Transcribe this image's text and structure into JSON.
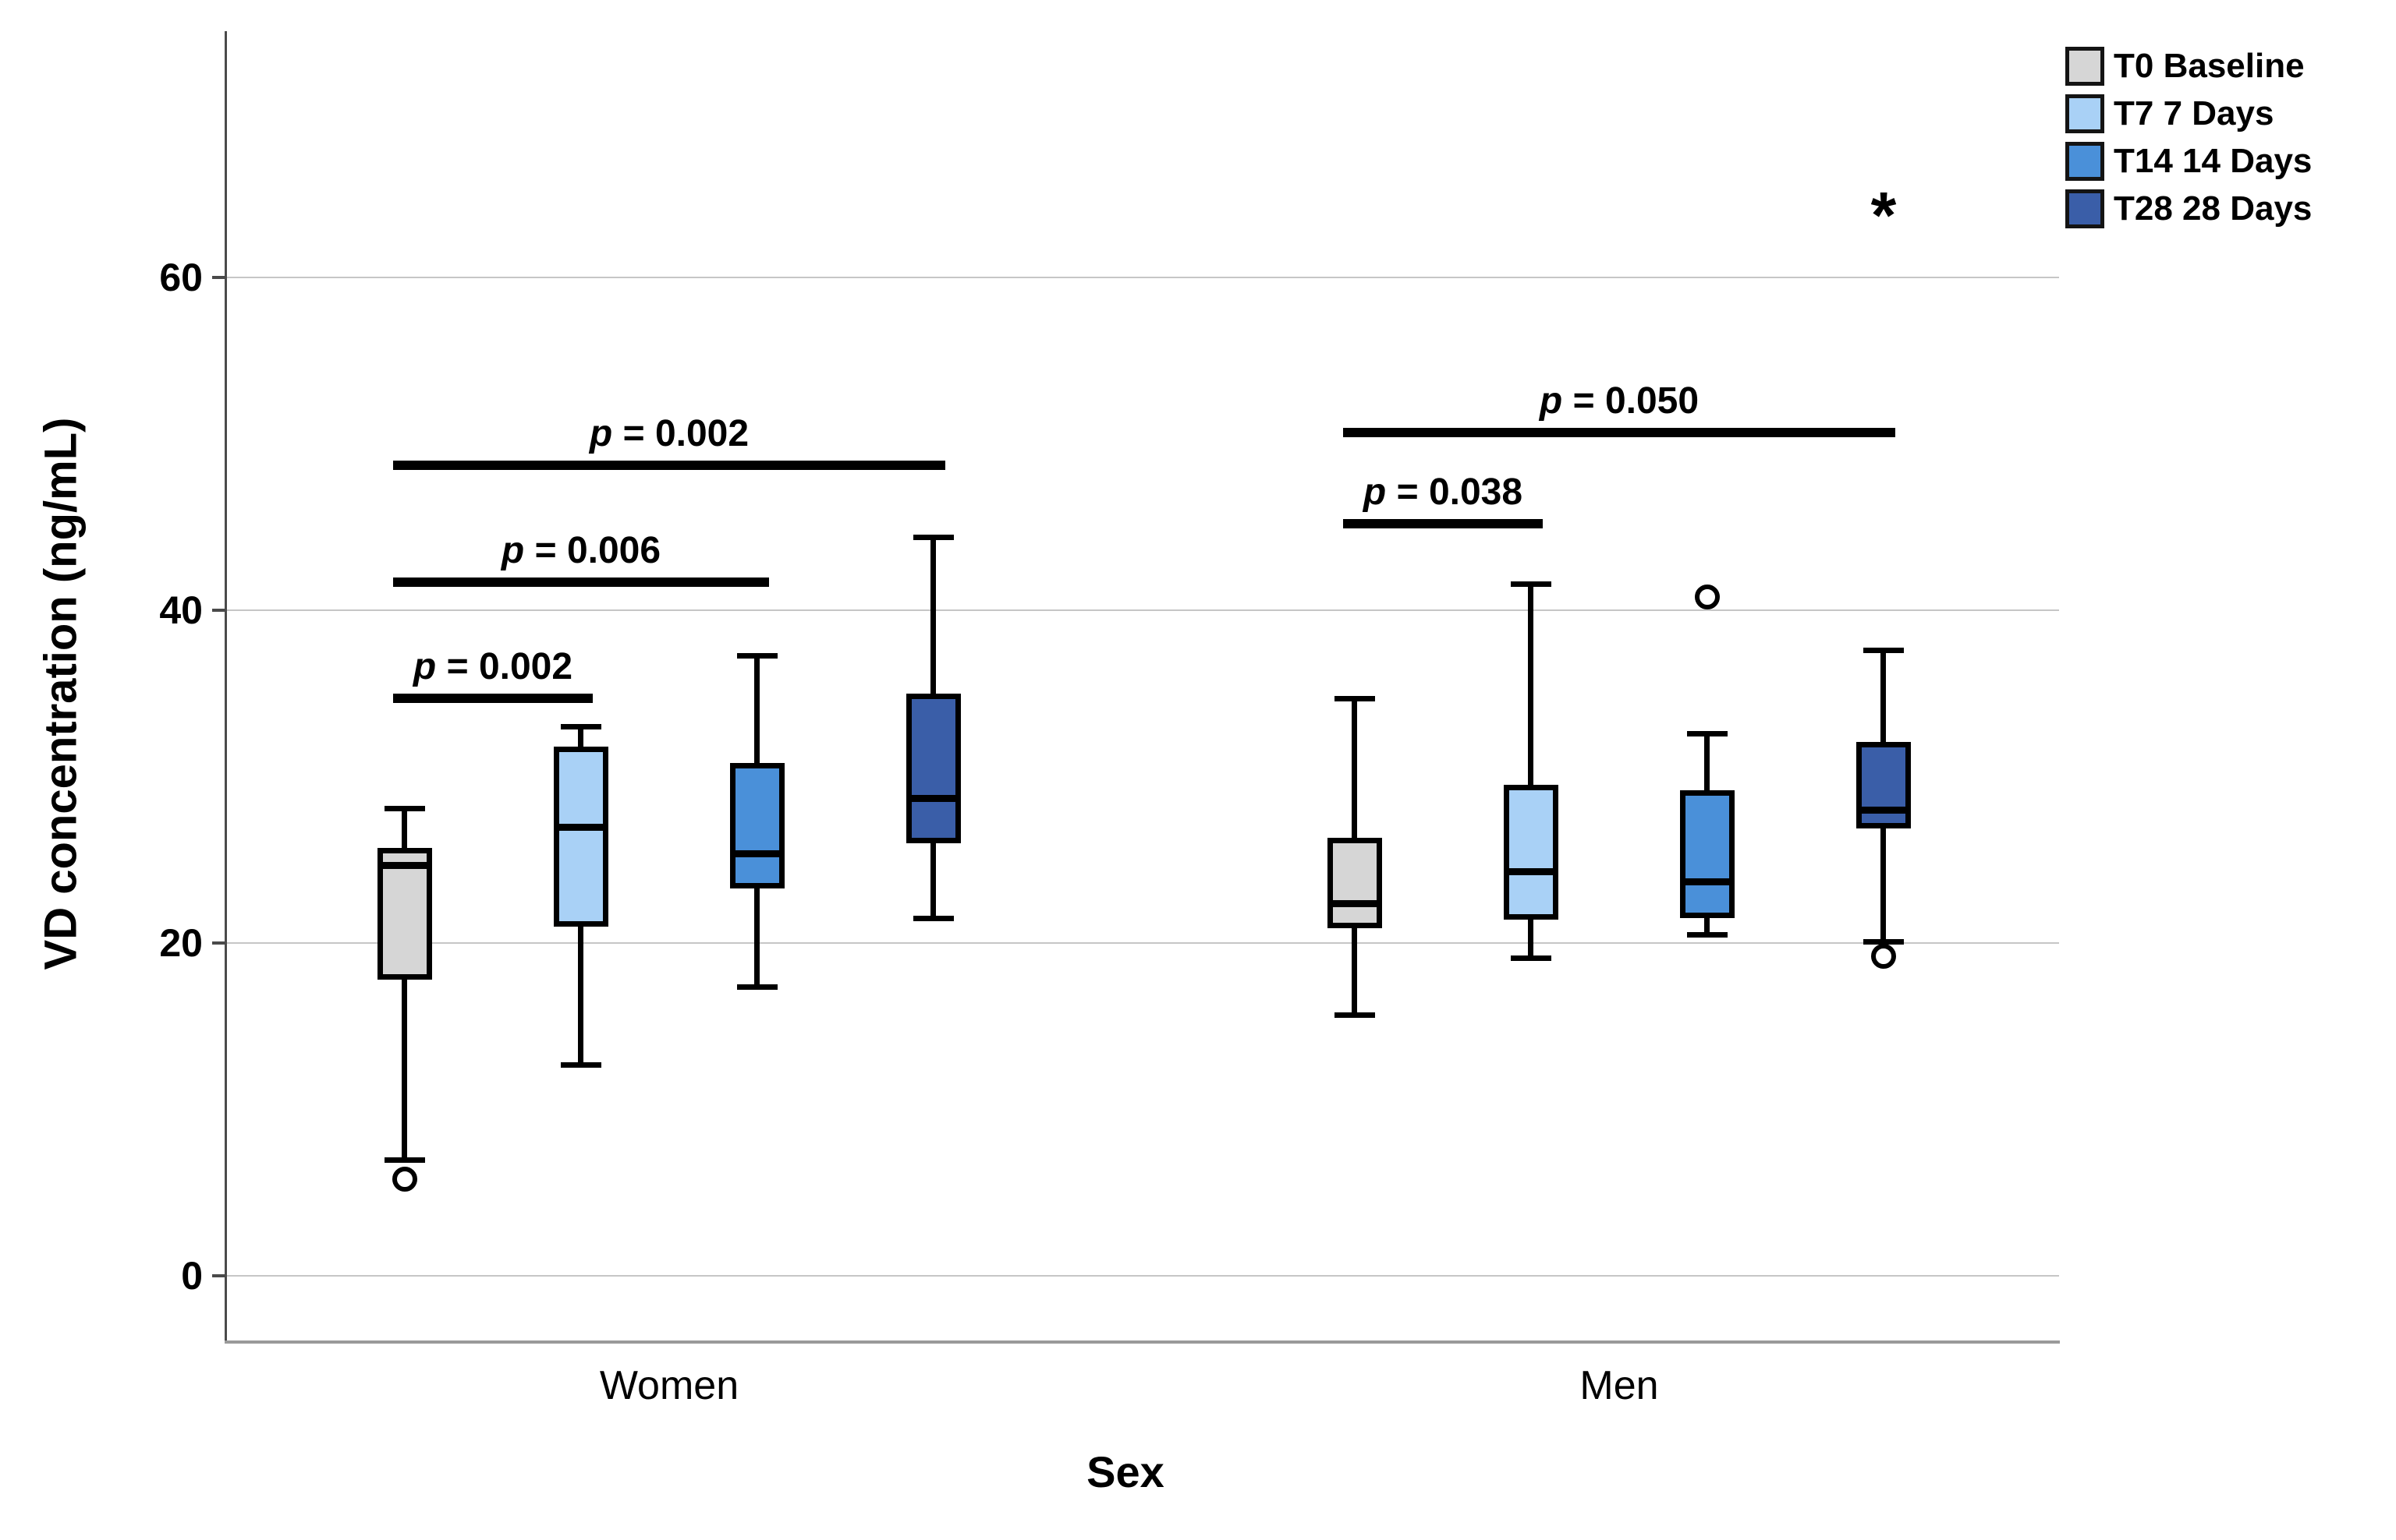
{
  "chart_data": {
    "type": "boxplot",
    "title": "",
    "ylabel": "VD concentration (ng/mL)",
    "xlabel": "Sex",
    "groups": [
      "Women",
      "Men"
    ],
    "yticks": [
      0,
      20,
      40,
      60
    ],
    "ylim": [
      -4,
      75
    ],
    "grid": "horizontal",
    "legend_position": "top-right",
    "series": [
      {
        "name": "T0 Baseline",
        "color": "#d6d6d6",
        "boxes": [
          {
            "group": "Women",
            "whisker_low": 7.0,
            "q1": 17.8,
            "median": 24.7,
            "q3": 25.7,
            "whisker_high": 28.1,
            "outliers": [
              5.8
            ]
          },
          {
            "group": "Men",
            "whisker_low": 15.7,
            "q1": 20.9,
            "median": 22.4,
            "q3": 26.3,
            "whisker_high": 34.7,
            "outliers": []
          }
        ]
      },
      {
        "name": "T7 7 Days",
        "color": "#a9d1f6",
        "boxes": [
          {
            "group": "Women",
            "whisker_low": 12.7,
            "q1": 21.0,
            "median": 27.0,
            "q3": 31.8,
            "whisker_high": 33.0,
            "outliers": []
          },
          {
            "group": "Men",
            "whisker_low": 19.1,
            "q1": 21.4,
            "median": 24.3,
            "q3": 29.5,
            "whisker_high": 41.6,
            "outliers": []
          }
        ]
      },
      {
        "name": "T14 14 Days",
        "color": "#4a90d9",
        "boxes": [
          {
            "group": "Women",
            "whisker_low": 17.4,
            "q1": 23.3,
            "median": 25.4,
            "q3": 30.8,
            "whisker_high": 37.3,
            "outliers": []
          },
          {
            "group": "Men",
            "whisker_low": 20.5,
            "q1": 21.5,
            "median": 23.7,
            "q3": 29.2,
            "whisker_high": 32.6,
            "outliers": [
              40.8
            ]
          }
        ]
      },
      {
        "name": "T28 28 Days",
        "color": "#3a5ea8",
        "boxes": [
          {
            "group": "Women",
            "whisker_low": 21.5,
            "q1": 26.0,
            "median": 28.7,
            "q3": 35.0,
            "whisker_high": 44.4,
            "outliers": []
          },
          {
            "group": "Men",
            "whisker_low": 20.1,
            "q1": 26.9,
            "median": 28.0,
            "q3": 32.1,
            "whisker_high": 37.6,
            "outliers": [
              19.2
            ]
          }
        ]
      }
    ],
    "annotations": {
      "brackets": [
        {
          "group": 0,
          "from": 0,
          "to": 1,
          "level": 34.7,
          "label": "p = 0.002"
        },
        {
          "group": 0,
          "from": 0,
          "to": 2,
          "level": 41.7,
          "label": "p = 0.006"
        },
        {
          "group": 0,
          "from": 0,
          "to": 3,
          "level": 48.7,
          "label": "p = 0.002"
        },
        {
          "group": 1,
          "from": 0,
          "to": 1,
          "level": 45.2,
          "label": "p = 0.038"
        },
        {
          "group": 1,
          "from": 0,
          "to": 3,
          "level": 50.7,
          "label": "p = 0.050"
        }
      ],
      "asterisk": {
        "group": 1,
        "series": 3,
        "value": 64.3,
        "text": "*"
      }
    }
  }
}
